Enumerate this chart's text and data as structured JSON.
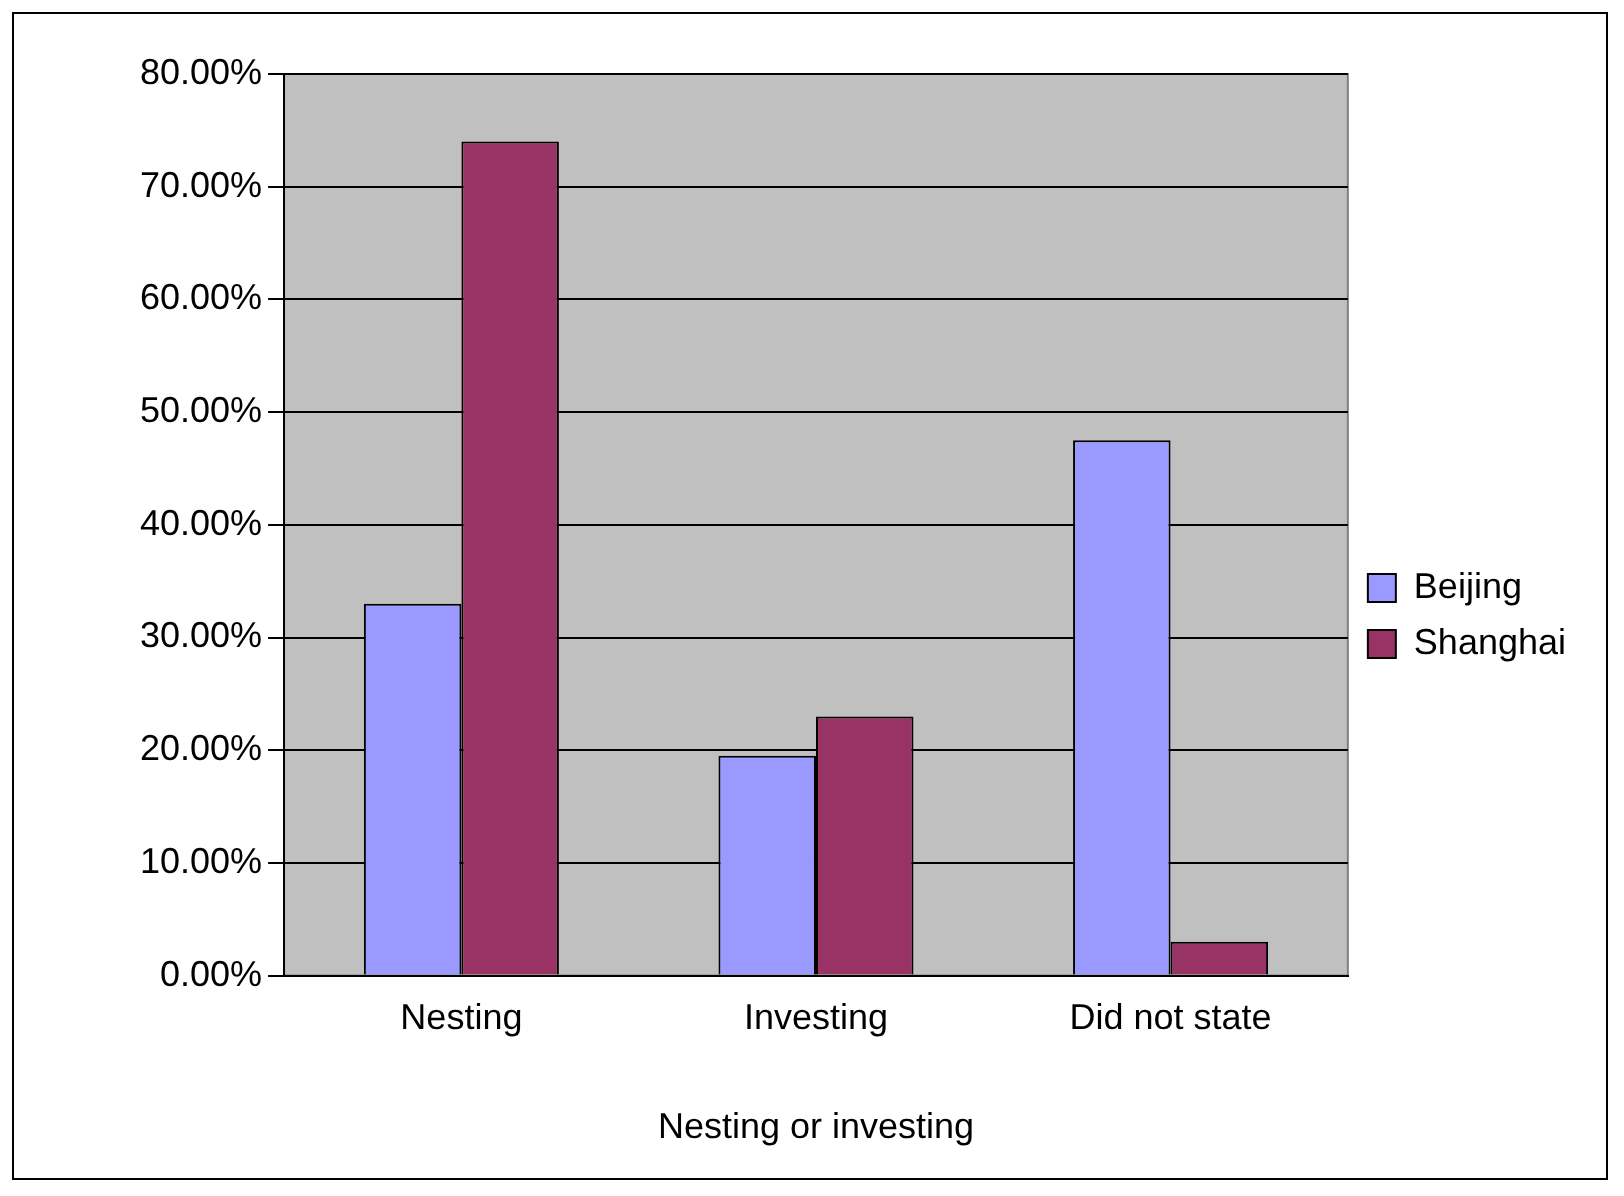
{
  "chart_data": {
    "type": "bar",
    "xlabel": "Nesting or investing",
    "categories": [
      "Nesting",
      "Investing",
      "Did not state"
    ],
    "series": [
      {
        "name": "Beijing",
        "color": "#9999ff",
        "values": [
          33,
          19.5,
          47.5
        ]
      },
      {
        "name": "Shanghai",
        "color": "#993366",
        "values": [
          74,
          23,
          3
        ]
      }
    ],
    "ylim": [
      0,
      80
    ],
    "yticks": [
      {
        "value": 0,
        "label": "0.00%"
      },
      {
        "value": 10,
        "label": "10.00%"
      },
      {
        "value": 20,
        "label": "20.00%"
      },
      {
        "value": 30,
        "label": "30.00%"
      },
      {
        "value": 40,
        "label": "40.00%"
      },
      {
        "value": 50,
        "label": "50.00%"
      },
      {
        "value": 60,
        "label": "60.00%"
      },
      {
        "value": 70,
        "label": "70.00%"
      },
      {
        "value": 80,
        "label": "80.00%"
      }
    ],
    "grid": "y",
    "legend": "right"
  }
}
